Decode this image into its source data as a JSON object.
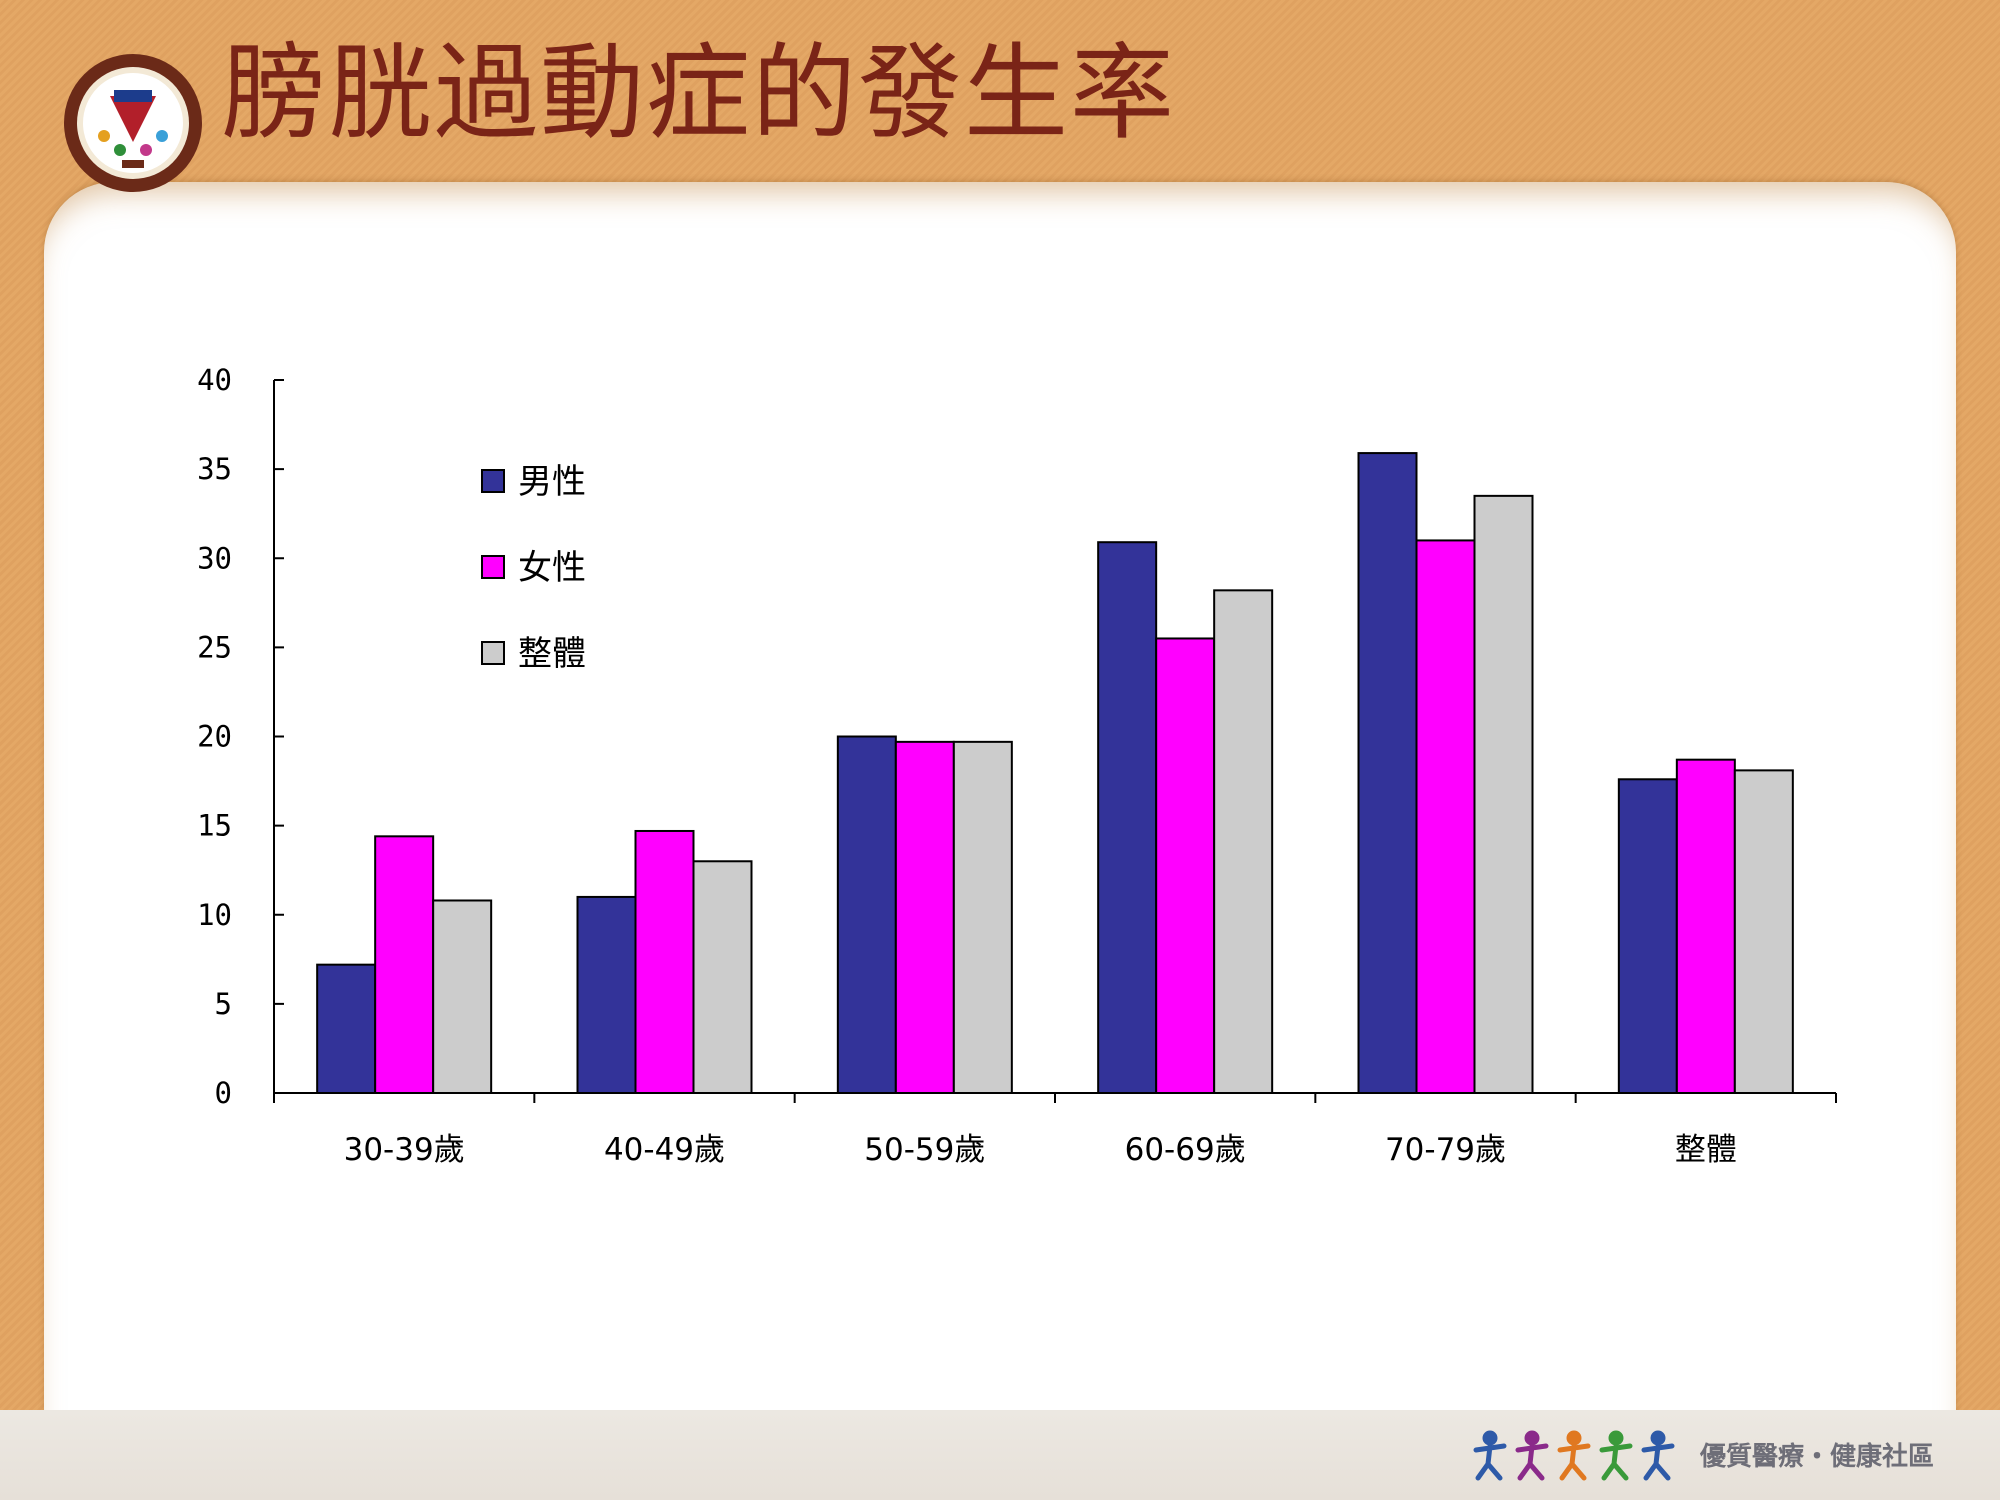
{
  "slide": {
    "title": "膀胱過動症的發生率",
    "footer_text": "優質醫療・健康社區"
  },
  "colors": {
    "male": "#333399",
    "female": "#ff00ff",
    "overall": "#cccccc",
    "title": "#7a2417"
  },
  "icons": [
    "hospital-logo-icon",
    "people-figures-icon"
  ],
  "chart_data": {
    "type": "bar",
    "title": "",
    "xlabel": "",
    "ylabel": "",
    "ylim": [
      0,
      40
    ],
    "yticks": [
      "0",
      "5",
      "10",
      "15",
      "20",
      "25",
      "30",
      "35",
      "40"
    ],
    "categories": [
      "30-39歲",
      "40-49歲",
      "50-59歲",
      "60-69歲",
      "70-79歲",
      "整體"
    ],
    "series": [
      {
        "name": "男性",
        "values": [
          7.2,
          11.0,
          20.0,
          30.9,
          35.9,
          17.6
        ]
      },
      {
        "name": "女性",
        "values": [
          14.4,
          14.7,
          19.7,
          25.5,
          31.0,
          18.7
        ]
      },
      {
        "name": "整體",
        "values": [
          10.8,
          13.0,
          19.7,
          28.2,
          33.5,
          18.1
        ]
      }
    ],
    "legend_position": "top-left inside plot",
    "grid": false
  }
}
